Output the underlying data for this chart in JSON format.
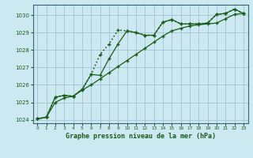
{
  "title": "Graphe pression niveau de la mer (hPa)",
  "bg_color": "#cce8f0",
  "grid_color": "#99bbcc",
  "line_color": "#1a5c1a",
  "xlim": [
    -0.5,
    23.5
  ],
  "ylim": [
    1023.8,
    1030.6
  ],
  "yticks": [
    1024,
    1025,
    1026,
    1027,
    1028,
    1029,
    1030
  ],
  "xticks": [
    0,
    1,
    2,
    3,
    4,
    5,
    6,
    7,
    8,
    9,
    10,
    11,
    12,
    13,
    14,
    15,
    16,
    17,
    18,
    19,
    20,
    21,
    22,
    23
  ],
  "line1_x": [
    0,
    1,
    2,
    3,
    4,
    5,
    6,
    7,
    8,
    9,
    10,
    11,
    12,
    13,
    14,
    15,
    16,
    17,
    18,
    19,
    20,
    21,
    22,
    23
  ],
  "line1_y": [
    1024.05,
    1024.15,
    1025.3,
    1025.4,
    1025.35,
    1025.75,
    1026.6,
    1026.55,
    1027.5,
    1028.35,
    1029.1,
    1029.0,
    1028.85,
    1028.85,
    1029.6,
    1029.75,
    1029.5,
    1029.5,
    1029.5,
    1029.55,
    1030.05,
    1030.1,
    1030.35,
    1030.1
  ],
  "line2_x": [
    0,
    1,
    2,
    3,
    4,
    5,
    6,
    7,
    8,
    9,
    10,
    11,
    12,
    13,
    14,
    15,
    16,
    17,
    18,
    19,
    20,
    21,
    22,
    23
  ],
  "line2_y": [
    1024.05,
    1024.15,
    1025.3,
    1025.4,
    1025.35,
    1025.75,
    1026.6,
    1027.75,
    1028.35,
    1029.15,
    1029.1,
    1029.0,
    1028.85,
    1028.85,
    1029.6,
    1029.75,
    1029.5,
    1029.5,
    1029.5,
    1029.55,
    1030.05,
    1030.1,
    1030.35,
    1030.1
  ],
  "line3_x": [
    0,
    1,
    2,
    3,
    4,
    5,
    6,
    7,
    8,
    9,
    10,
    11,
    12,
    13,
    14,
    15,
    16,
    17,
    18,
    19,
    20,
    21,
    22,
    23
  ],
  "line3_y": [
    1024.05,
    1024.15,
    1025.0,
    1025.25,
    1025.35,
    1025.7,
    1026.0,
    1026.35,
    1026.7,
    1027.05,
    1027.4,
    1027.75,
    1028.1,
    1028.45,
    1028.8,
    1029.1,
    1029.25,
    1029.38,
    1029.45,
    1029.5,
    1029.55,
    1029.8,
    1030.05,
    1030.1
  ]
}
